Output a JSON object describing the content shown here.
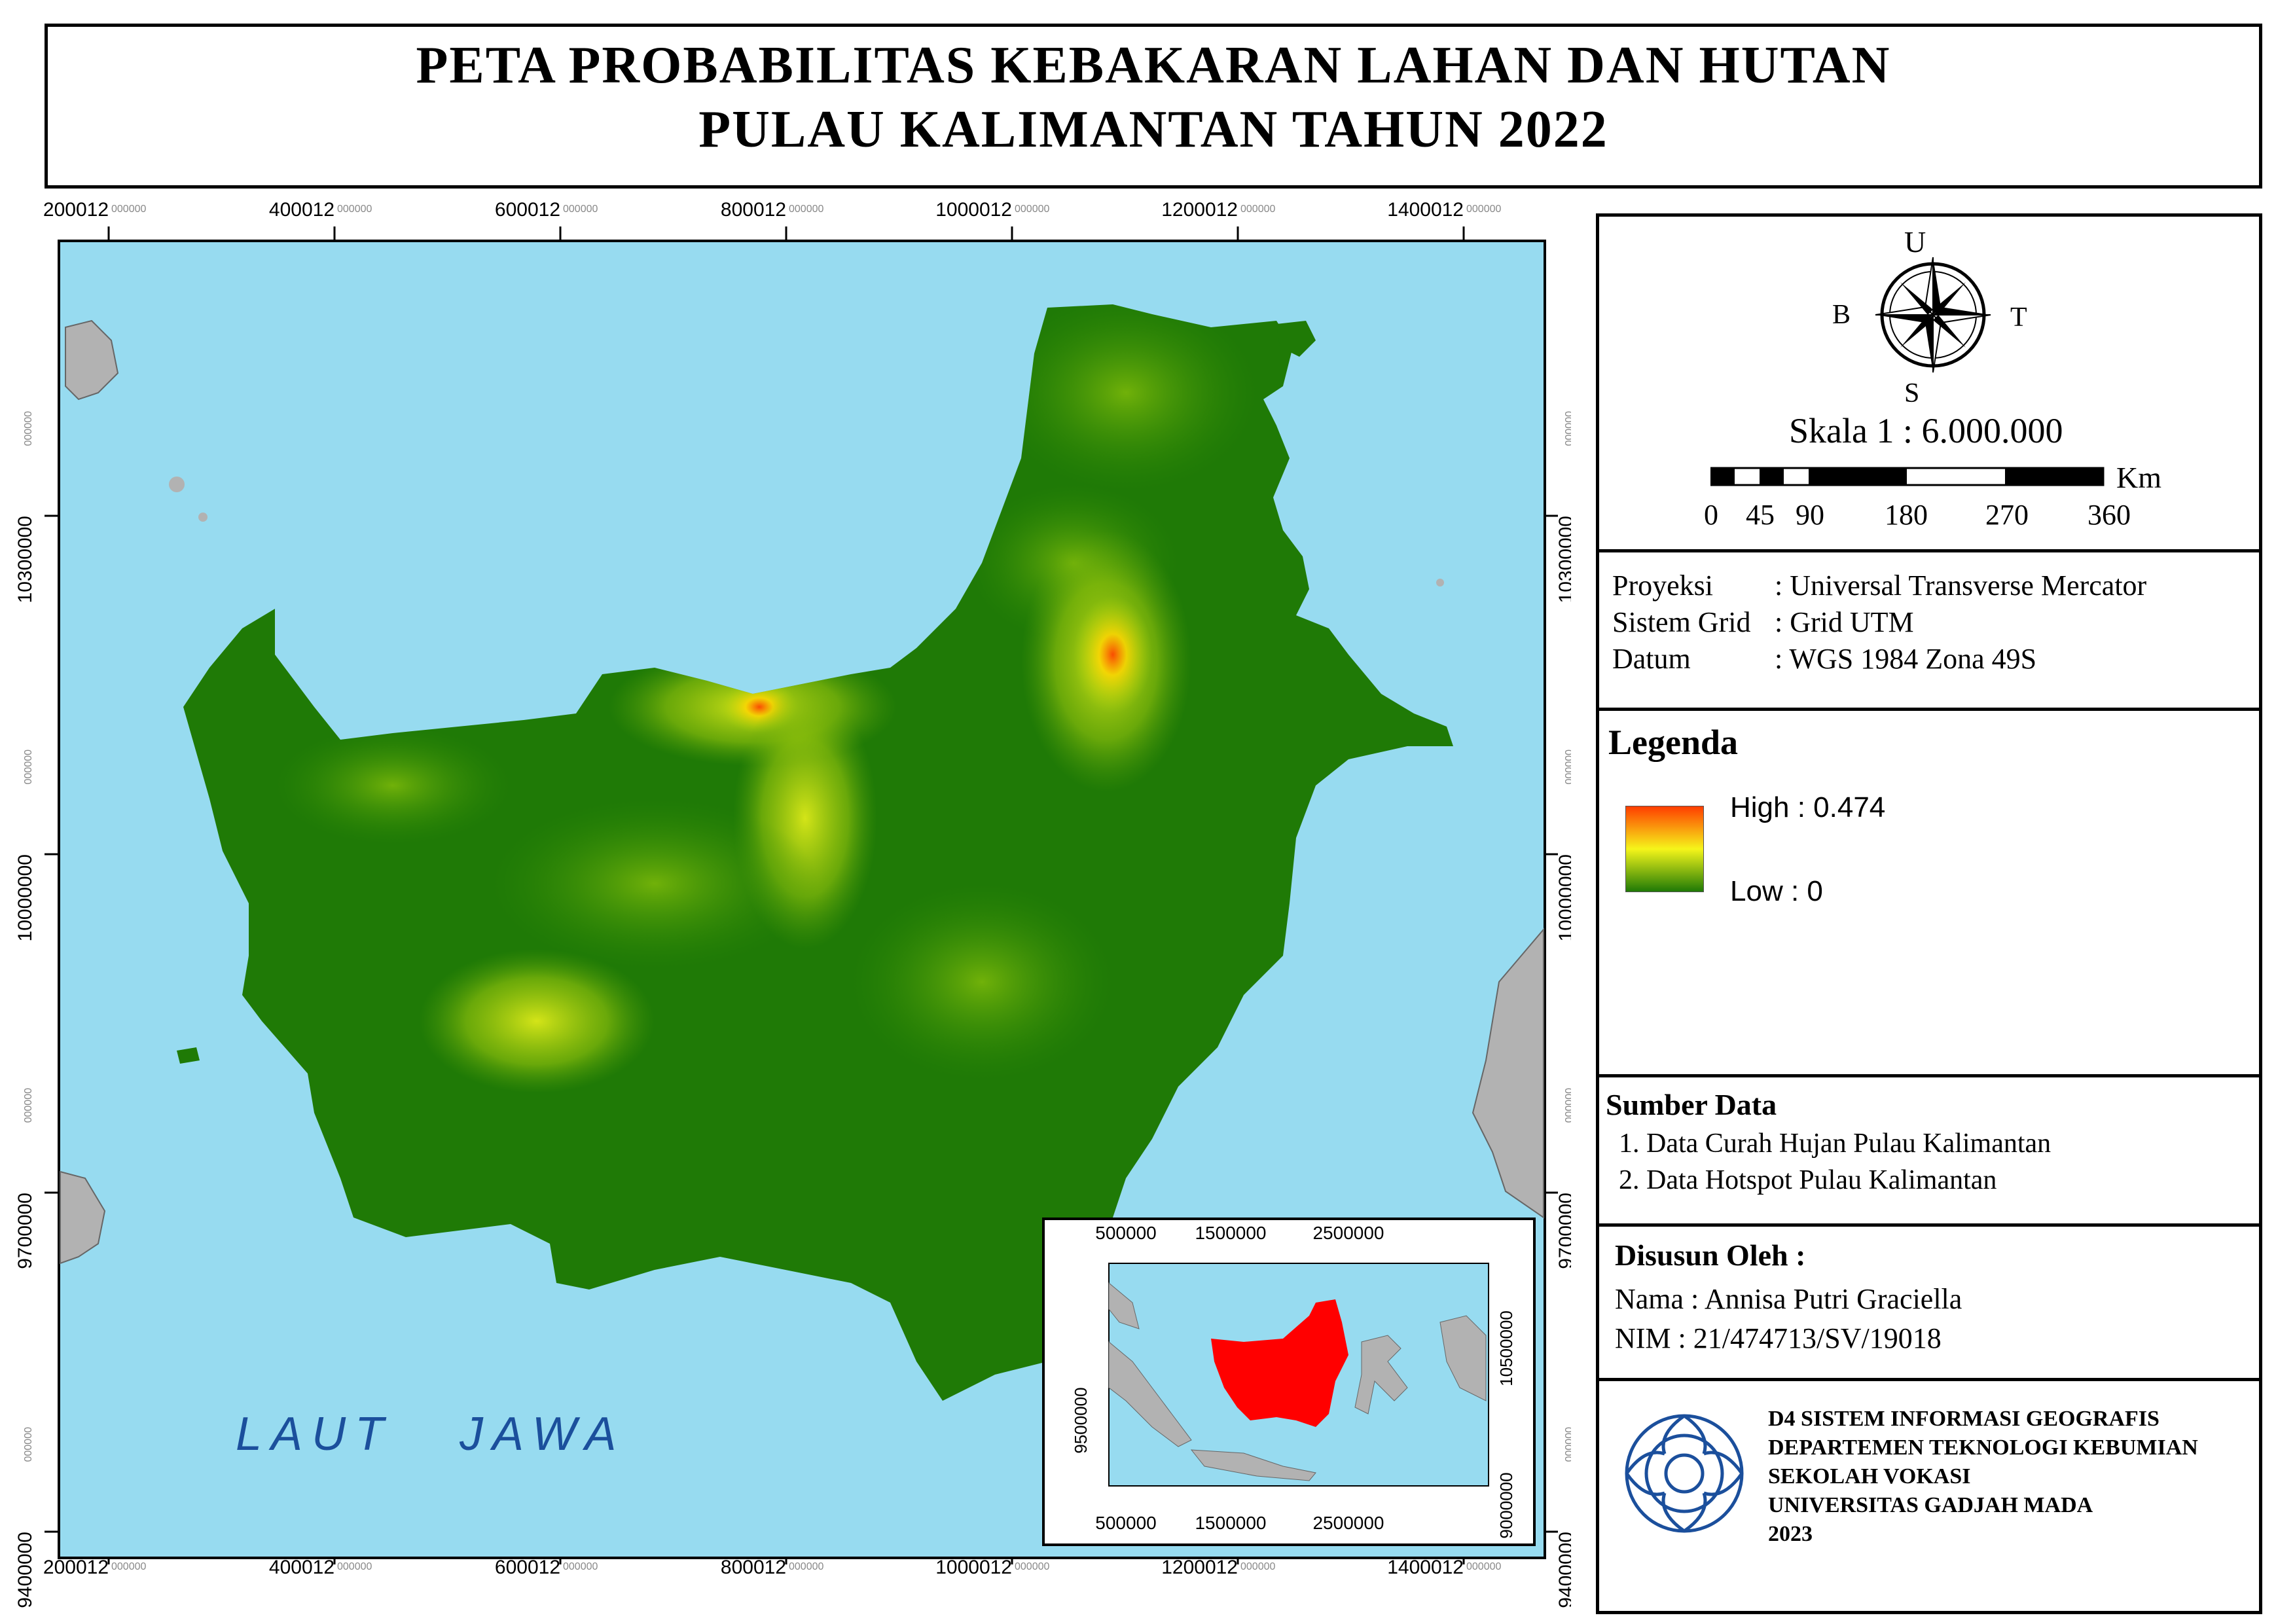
{
  "title": {
    "line1": "PETA PROBABILITAS KEBAKARAN LAHAN DAN HUTAN",
    "line2": "PULAU KALIMANTAN TAHUN 2022"
  },
  "map": {
    "x_ticks": [
      {
        "main": "200012",
        "sub": "000000"
      },
      {
        "main": "400012",
        "sub": "000000"
      },
      {
        "main": "600012",
        "sub": "000000"
      },
      {
        "main": "800012",
        "sub": "000000"
      },
      {
        "main": "1000012",
        "sub": "000000"
      },
      {
        "main": "1200012",
        "sub": "000000"
      },
      {
        "main": "1400012",
        "sub": "000000"
      }
    ],
    "y_ticks": [
      {
        "main": "10300000",
        "sub": "000000"
      },
      {
        "main": "10000000",
        "sub": "000000"
      },
      {
        "main": "9700000",
        "sub": "000000"
      },
      {
        "main": "9400000",
        "sub": "000000"
      }
    ],
    "sea_label": "LAUT   JAWA",
    "sea_color": "#97dbf0",
    "land_color": "#1f7a06",
    "neighbor_land_color": "#b2b2b2"
  },
  "inset": {
    "x_ticks": [
      "500000",
      "1500000",
      "2500000"
    ],
    "y_ticks_right": [
      "10500000",
      "9000000"
    ],
    "y_ticks_left": [
      "9500000"
    ],
    "highlight_color": "#ff0000"
  },
  "north": {
    "u": "U",
    "b": "B",
    "t": "T",
    "s": "S"
  },
  "scale": {
    "text": "Skala 1 : 6.000.000",
    "unit": "Km",
    "labels": [
      "0",
      "45",
      "90",
      "180",
      "270",
      "360"
    ]
  },
  "projection": {
    "rows": [
      {
        "label": "Proyeksi",
        "value": ": Universal Transverse Mercator"
      },
      {
        "label": "Sistem Grid",
        "value": ": Grid UTM"
      },
      {
        "label": "Datum",
        "value": ": WGS 1984 Zona 49S"
      }
    ]
  },
  "legend": {
    "title": "Legenda",
    "high": "High : 0.474",
    "low": "Low : 0",
    "color_high": "#ff3d00",
    "color_mid": "#f5f51a",
    "color_low": "#1f7a06"
  },
  "sources": {
    "title": "Sumber Data",
    "items": [
      "1. Data Curah Hujan Pulau Kalimantan",
      "2. Data Hotspot Pulau Kalimantan"
    ]
  },
  "author": {
    "title": "Disusun Oleh :",
    "name": "Nama : Annisa Putri Graciella",
    "nim": "NIM : 21/474713/SV/19018"
  },
  "institution": {
    "lines": [
      "D4 SISTEM INFORMASI GEOGRAFIS",
      "DEPARTEMEN TEKNOLOGI KEBUMIAN",
      "SEKOLAH VOKASI",
      "UNIVERSITAS GADJAH MADA",
      "2023"
    ]
  }
}
